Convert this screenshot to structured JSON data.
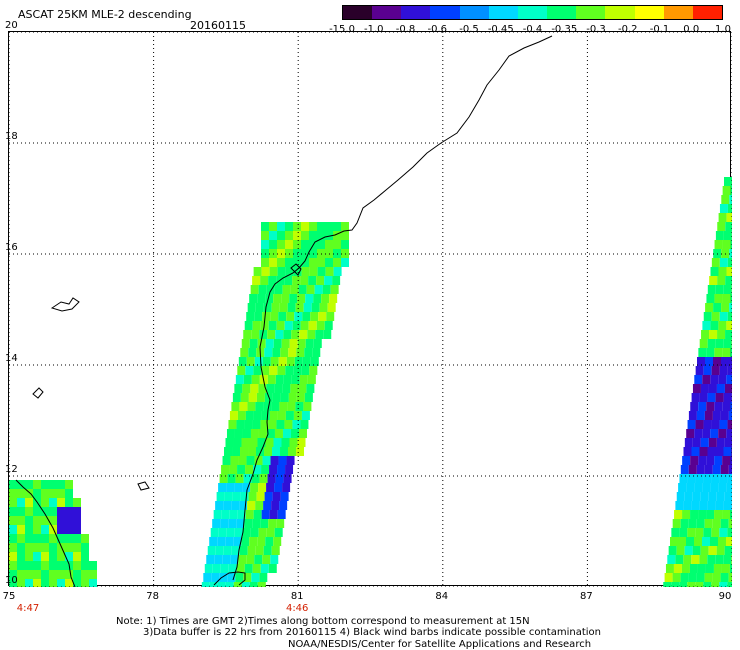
{
  "title": "ASCAT 25KM MLE-2 descending",
  "date": "20160115",
  "colorbar": {
    "labels": [
      "-15.0",
      "-1.0",
      "-0.8",
      "-0.6",
      "-0.5",
      "-0.45",
      "-0.4",
      "-0.35",
      "-0.3",
      "-0.2",
      "-0.1",
      "0.0",
      "1.0"
    ],
    "colors": [
      "#2a002a",
      "#5a0090",
      "#3010d8",
      "#0040ff",
      "#0090ff",
      "#00d8ff",
      "#00ffc8",
      "#00ff70",
      "#60ff20",
      "#c0ff00",
      "#ffff00",
      "#ff9900",
      "#ff2000"
    ]
  },
  "map": {
    "lat_labels": [
      "20",
      "18",
      "16",
      "14",
      "12",
      "10"
    ],
    "lon_labels": [
      "75",
      "78",
      "81",
      "84",
      "87",
      "90"
    ],
    "lat_range": [
      10,
      20
    ],
    "lon_range": [
      75,
      90
    ],
    "gridlines": "dotted"
  },
  "pass_times": [
    {
      "lon": 75,
      "text": "4:47"
    },
    {
      "lon": 81,
      "text": "4:46"
    }
  ],
  "notes": [
    "Note: 1) Times are GMT 2)Times along bottom correspond to measurement at 15N",
    "3)Data buffer is 22 hrs from 20160115 4) Black wind barbs indicate possible contamination",
    "NOAA/NESDIS/Center for Satellite Applications and Research"
  ]
}
